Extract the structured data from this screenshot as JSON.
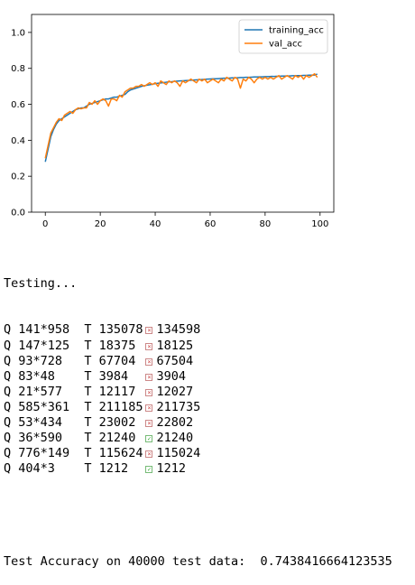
{
  "chart_data": {
    "type": "line",
    "title": "",
    "xlabel": "",
    "ylabel": "",
    "xlim": [
      -5,
      105
    ],
    "ylim": [
      0.0,
      1.1
    ],
    "xticks": [
      "0",
      "20",
      "40",
      "60",
      "80",
      "100"
    ],
    "yticks": [
      "0.0",
      "0.2",
      "0.4",
      "0.6",
      "0.8",
      "1.0"
    ],
    "legend": "top-right",
    "x": [
      0,
      1,
      2,
      3,
      4,
      5,
      6,
      7,
      8,
      9,
      10,
      11,
      12,
      13,
      14,
      15,
      16,
      17,
      18,
      19,
      20,
      21,
      22,
      23,
      24,
      25,
      26,
      27,
      28,
      29,
      30,
      31,
      32,
      33,
      34,
      35,
      36,
      37,
      38,
      39,
      40,
      41,
      42,
      43,
      44,
      45,
      46,
      47,
      48,
      49,
      50,
      51,
      52,
      53,
      54,
      55,
      56,
      57,
      58,
      59,
      60,
      61,
      62,
      63,
      64,
      65,
      66,
      67,
      68,
      69,
      70,
      71,
      72,
      73,
      74,
      75,
      76,
      77,
      78,
      79,
      80,
      81,
      82,
      83,
      84,
      85,
      86,
      87,
      88,
      89,
      90,
      91,
      92,
      93,
      94,
      95,
      96,
      97,
      98,
      99
    ],
    "series": [
      {
        "name": "training_acc",
        "color": "#1f77b4",
        "values": [
          0.28,
          0.35,
          0.42,
          0.46,
          0.49,
          0.51,
          0.52,
          0.53,
          0.54,
          0.55,
          0.56,
          0.57,
          0.575,
          0.58,
          0.58,
          0.59,
          0.6,
          0.605,
          0.61,
          0.615,
          0.62,
          0.625,
          0.63,
          0.63,
          0.635,
          0.64,
          0.64,
          0.645,
          0.65,
          0.655,
          0.67,
          0.68,
          0.685,
          0.69,
          0.695,
          0.7,
          0.703,
          0.706,
          0.709,
          0.712,
          0.715,
          0.717,
          0.719,
          0.721,
          0.723,
          0.725,
          0.726,
          0.728,
          0.729,
          0.73,
          0.731,
          0.732,
          0.733,
          0.734,
          0.735,
          0.736,
          0.737,
          0.738,
          0.739,
          0.74,
          0.741,
          0.742,
          0.742,
          0.743,
          0.744,
          0.745,
          0.745,
          0.746,
          0.747,
          0.747,
          0.748,
          0.749,
          0.749,
          0.75,
          0.75,
          0.751,
          0.752,
          0.752,
          0.753,
          0.753,
          0.754,
          0.754,
          0.755,
          0.755,
          0.756,
          0.756,
          0.757,
          0.757,
          0.758,
          0.758,
          0.759,
          0.759,
          0.76,
          0.76,
          0.761,
          0.761,
          0.762,
          0.762,
          0.763,
          0.768
        ]
      },
      {
        "name": "val_acc",
        "color": "#ff7f0e",
        "values": [
          0.3,
          0.37,
          0.44,
          0.47,
          0.5,
          0.52,
          0.51,
          0.54,
          0.55,
          0.56,
          0.55,
          0.57,
          0.58,
          0.575,
          0.58,
          0.58,
          0.61,
          0.6,
          0.62,
          0.6,
          0.62,
          0.63,
          0.62,
          0.59,
          0.63,
          0.63,
          0.62,
          0.65,
          0.64,
          0.67,
          0.68,
          0.69,
          0.69,
          0.7,
          0.7,
          0.71,
          0.7,
          0.71,
          0.72,
          0.71,
          0.72,
          0.7,
          0.73,
          0.72,
          0.71,
          0.73,
          0.72,
          0.73,
          0.72,
          0.7,
          0.73,
          0.72,
          0.73,
          0.74,
          0.73,
          0.72,
          0.74,
          0.73,
          0.74,
          0.72,
          0.73,
          0.74,
          0.73,
          0.72,
          0.74,
          0.73,
          0.75,
          0.74,
          0.73,
          0.75,
          0.74,
          0.69,
          0.74,
          0.73,
          0.75,
          0.74,
          0.72,
          0.74,
          0.75,
          0.74,
          0.75,
          0.74,
          0.75,
          0.74,
          0.75,
          0.76,
          0.74,
          0.75,
          0.76,
          0.75,
          0.74,
          0.76,
          0.75,
          0.76,
          0.74,
          0.76,
          0.75,
          0.76,
          0.77,
          0.75
        ]
      }
    ]
  },
  "console": {
    "header": "Testing...",
    "rows": [
      {
        "q": "Q 141*958",
        "t": "T 135078",
        "ok": false,
        "guess": "134598"
      },
      {
        "q": "Q 147*125",
        "t": "T 18375",
        "ok": false,
        "guess": "18125"
      },
      {
        "q": "Q 93*728",
        "t": "T 67704",
        "ok": false,
        "guess": "67504"
      },
      {
        "q": "Q 83*48",
        "t": "T 3984",
        "ok": false,
        "guess": "3904"
      },
      {
        "q": "Q 21*577",
        "t": "T 12117",
        "ok": false,
        "guess": "12027"
      },
      {
        "q": "Q 585*361",
        "t": "T 211185",
        "ok": false,
        "guess": "211735"
      },
      {
        "q": "Q 53*434",
        "t": "T 23002",
        "ok": false,
        "guess": "22802"
      },
      {
        "q": "Q 36*590",
        "t": "T 21240",
        "ok": true,
        "guess": "21240"
      },
      {
        "q": "Q 776*149",
        "t": "T 115624",
        "ok": false,
        "guess": "115024"
      },
      {
        "q": "Q 404*3",
        "t": "T 1212",
        "ok": true,
        "guess": "1212"
      }
    ],
    "accuracy_line": "Test Accuracy on 40000 test data:  0.7438416664123535"
  }
}
